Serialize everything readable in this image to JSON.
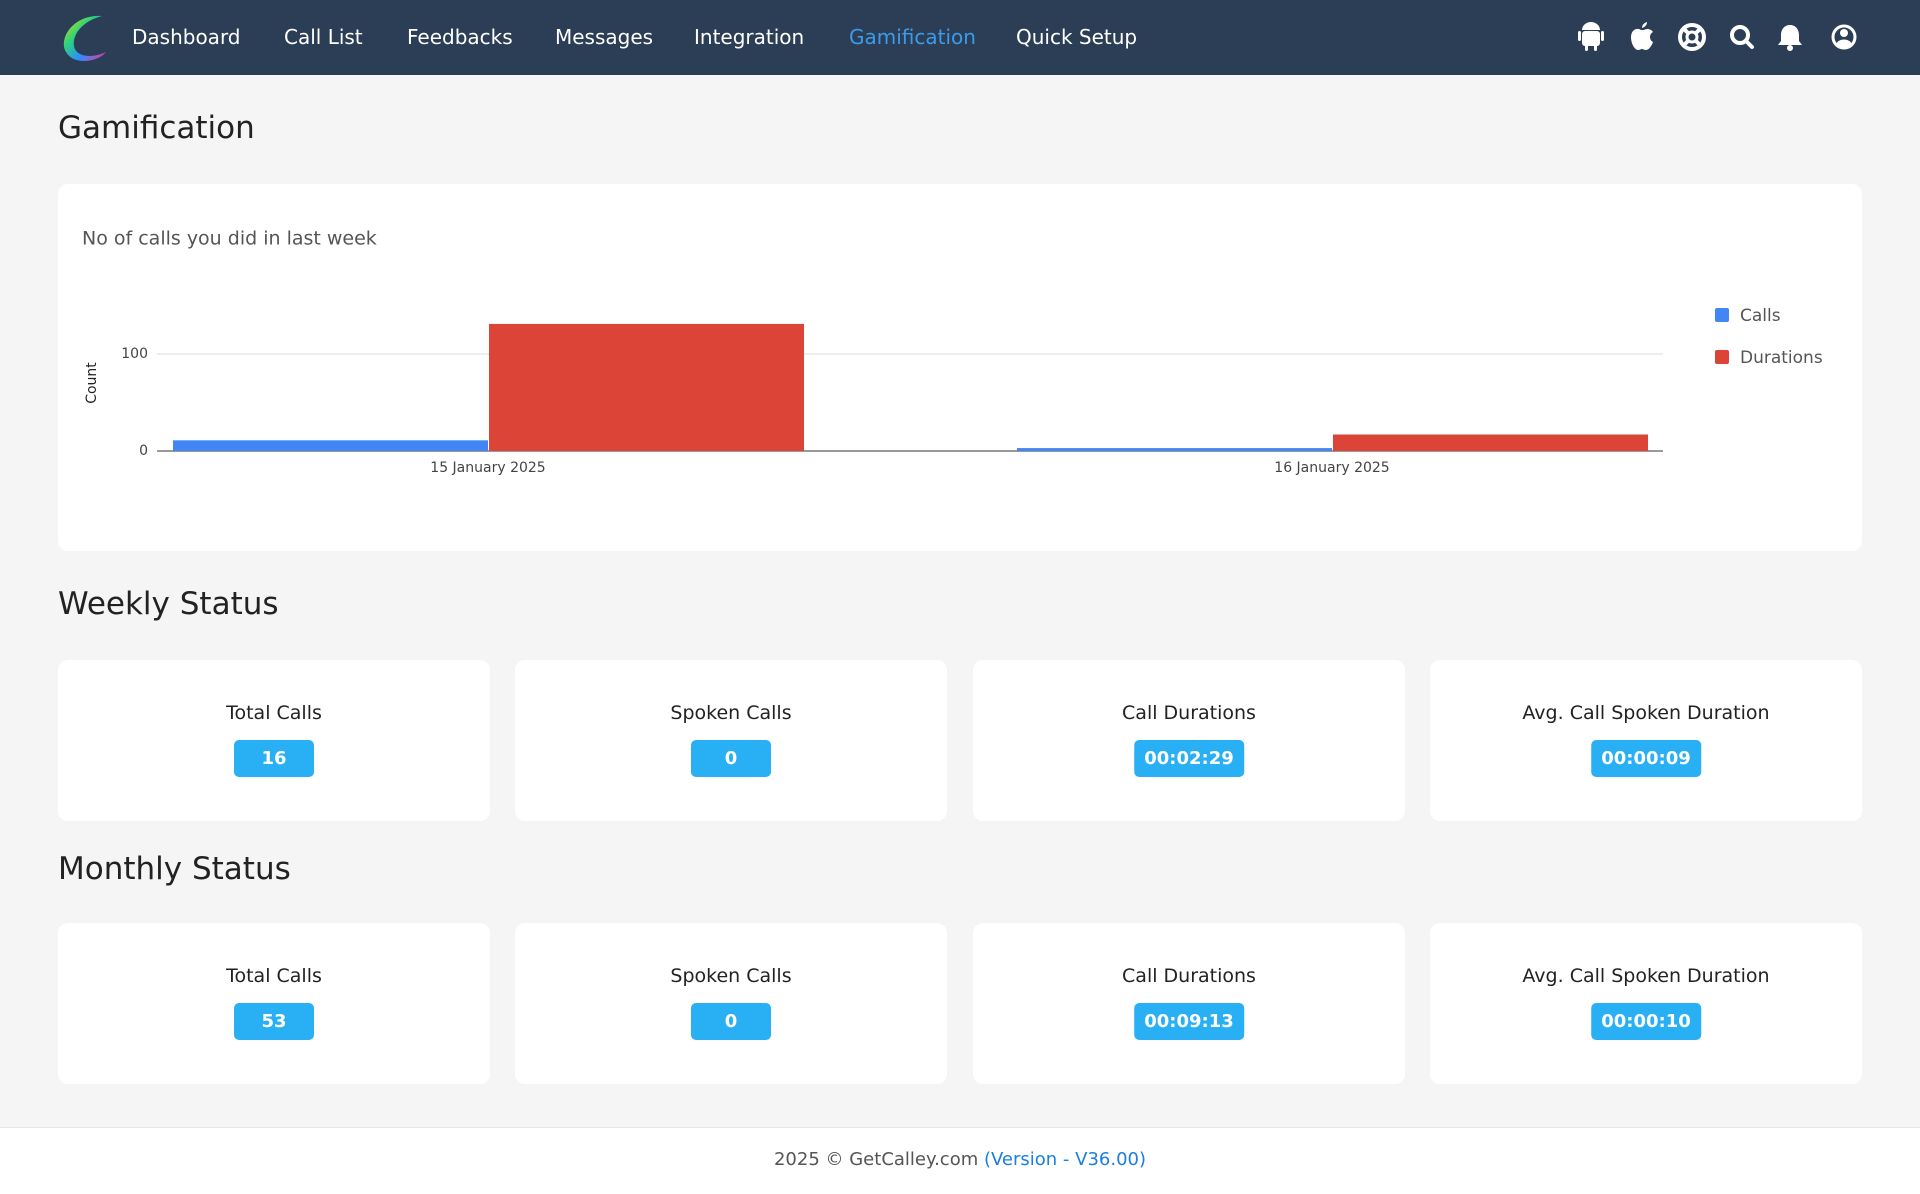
{
  "nav": {
    "items": [
      "Dashboard",
      "Call List",
      "Feedbacks",
      "Messages",
      "Integration",
      "Gamification",
      "Quick Setup"
    ],
    "active": 5
  },
  "page_title": "Gamification",
  "chart_data": {
    "type": "bar",
    "title": "No of calls you did in last week",
    "y_label": "Count",
    "categories": [
      "15 January 2025",
      "16 January 2025"
    ],
    "series": [
      {
        "name": "Calls",
        "color": "#4285f4",
        "values": [
          11,
          3
        ]
      },
      {
        "name": "Durations",
        "color": "#db4437",
        "values": [
          131,
          17
        ]
      }
    ],
    "ylim": [
      0,
      150
    ],
    "yticks": [
      0,
      100
    ],
    "grid": true,
    "legend": "right"
  },
  "weekly": {
    "title": "Weekly Status",
    "cards": [
      {
        "label": "Total Calls",
        "value": "16"
      },
      {
        "label": "Spoken Calls",
        "value": "0"
      },
      {
        "label": "Call Durations",
        "value": "00:02:29"
      },
      {
        "label": "Avg. Call Spoken Duration",
        "value": "00:00:09"
      }
    ]
  },
  "monthly": {
    "title": "Monthly Status",
    "cards": [
      {
        "label": "Total Calls",
        "value": "53"
      },
      {
        "label": "Spoken Calls",
        "value": "0"
      },
      {
        "label": "Call Durations",
        "value": "00:09:13"
      },
      {
        "label": "Avg. Call Spoken Duration",
        "value": "00:00:10"
      }
    ]
  },
  "footer": {
    "text": "2025 © GetCalley.com",
    "version": "(Version - V36.00)"
  }
}
